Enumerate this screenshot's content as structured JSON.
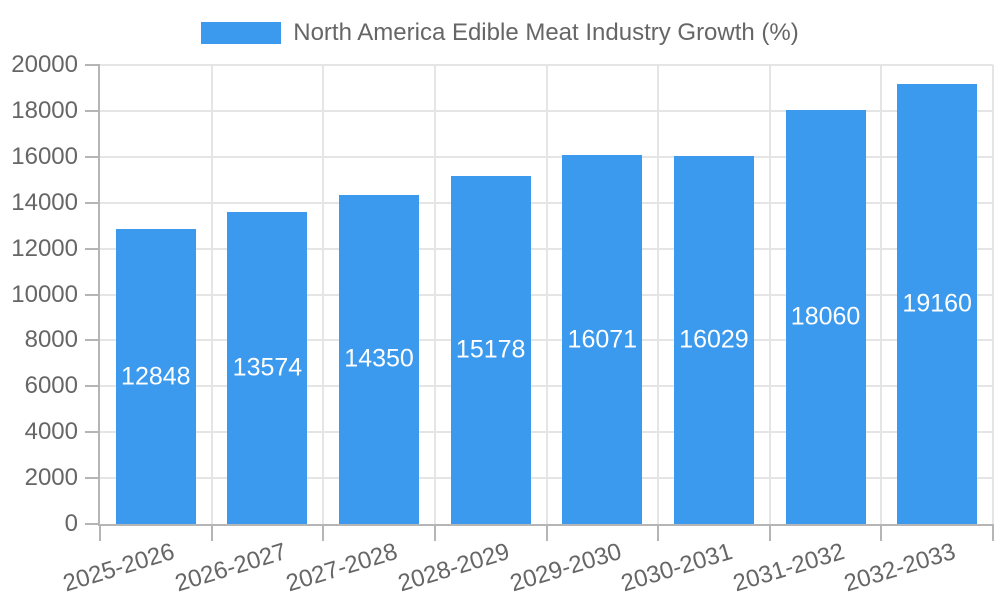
{
  "chart_data": {
    "type": "bar",
    "title": "North America Edible Meat Industry Growth (%)",
    "categories": [
      "2025-2026",
      "2026-2027",
      "2027-2028",
      "2028-2029",
      "2029-2030",
      "2030-2031",
      "2031-2032",
      "2032-2033"
    ],
    "values": [
      12848,
      13574,
      14350,
      15178,
      16071,
      16029,
      18060,
      19160
    ],
    "ylim": [
      0,
      20000
    ],
    "ytick_step": 2000,
    "yticks": [
      0,
      2000,
      4000,
      6000,
      8000,
      10000,
      12000,
      14000,
      16000,
      18000,
      20000
    ],
    "grid": true,
    "legend_position": "top",
    "bar_color": "#3B9AEE",
    "bar_label_color": "#FFFFFF",
    "axis_color": "#B5B5B5",
    "grid_color": "#E5E5E5",
    "text_color": "#666666"
  }
}
